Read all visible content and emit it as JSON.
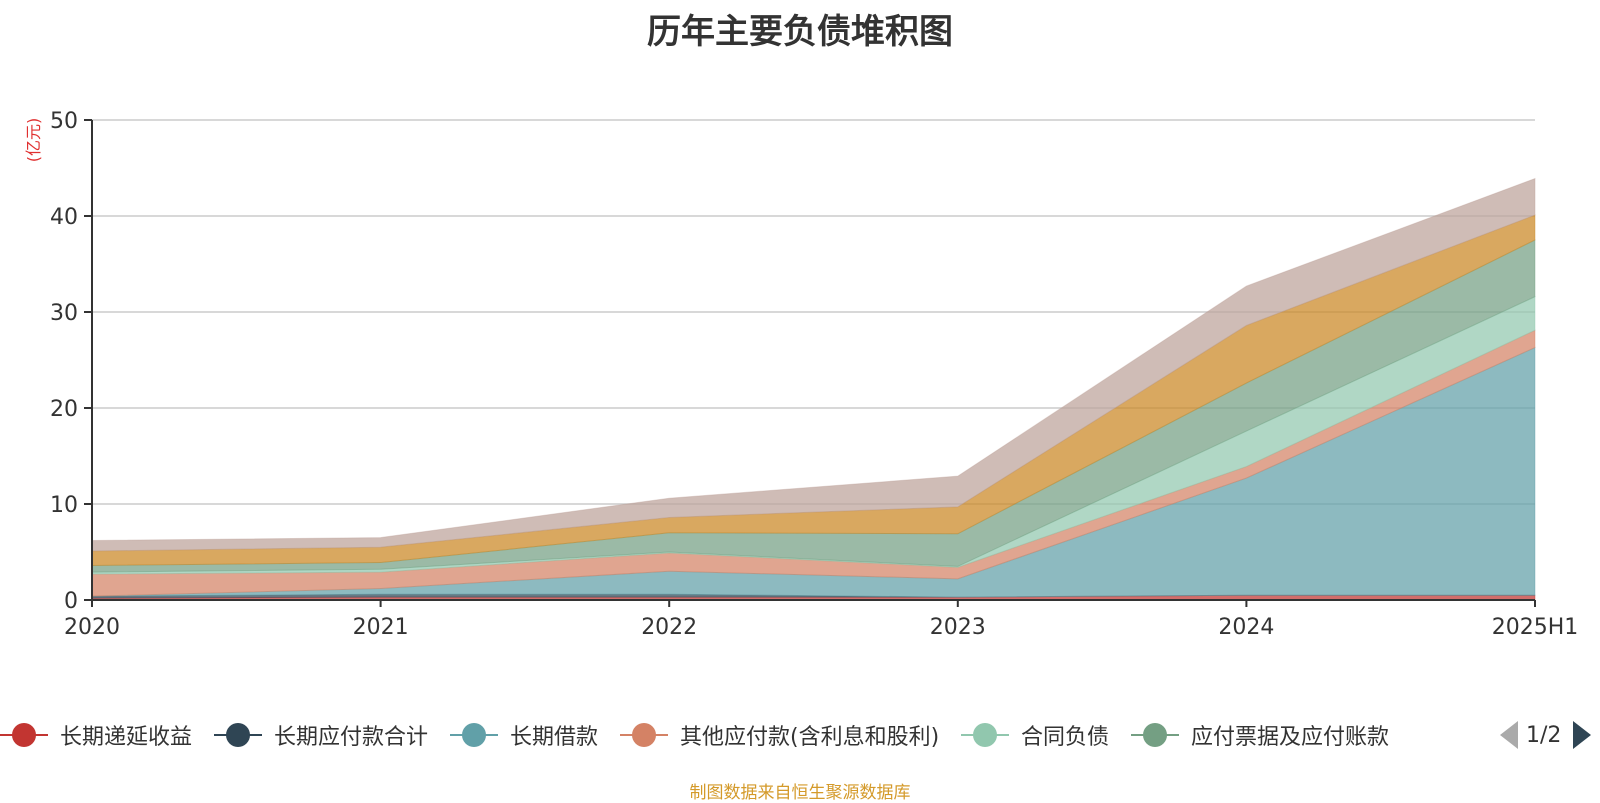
{
  "chart_data": {
    "type": "area",
    "title": "历年主要负债堆积图",
    "ylabel": "(亿元)",
    "xlabel": "",
    "stacked": true,
    "ylim": [
      0,
      50
    ],
    "yticks": [
      "0",
      "10",
      "20",
      "30",
      "40",
      "50"
    ],
    "categories": [
      "2020",
      "2021",
      "2022",
      "2023",
      "2024",
      "2025H1"
    ],
    "grid": true,
    "legend_position": "bottom",
    "series": [
      {
        "name": "长期递延收益",
        "color": "#c23531",
        "values": [
          0.2,
          0.3,
          0.3,
          0.3,
          0.5,
          0.5
        ]
      },
      {
        "name": "长期应付款合计",
        "color": "#2f4554",
        "values": [
          0.2,
          0.3,
          0.3,
          0.0,
          0.0,
          0.0
        ]
      },
      {
        "name": "长期借款",
        "color": "#61a0a8",
        "values": [
          0.0,
          0.6,
          2.4,
          1.9,
          12.2,
          25.8
        ]
      },
      {
        "name": "其他应付款(含利息和股利)",
        "color": "#d48265",
        "values": [
          2.3,
          1.7,
          1.9,
          1.2,
          1.2,
          1.8
        ]
      },
      {
        "name": "合同负债",
        "color": "#91c7ae",
        "values": [
          0.2,
          0.3,
          0.1,
          0.1,
          3.7,
          3.5
        ]
      },
      {
        "name": "应付票据及应付账款",
        "color": "#749f83",
        "values": [
          0.7,
          0.7,
          2.0,
          3.4,
          5.0,
          5.9
        ]
      },
      {
        "name": "",
        "color": "#ca8622",
        "values": [
          1.5,
          1.6,
          1.6,
          2.8,
          6.0,
          2.6
        ]
      },
      {
        "name": "",
        "color": "#bda29a",
        "values": [
          1.1,
          1.0,
          2.0,
          3.2,
          4.1,
          3.8
        ]
      }
    ]
  },
  "legend": {
    "page": "1/2"
  },
  "footer": "制图数据来自恒生聚源数据库"
}
